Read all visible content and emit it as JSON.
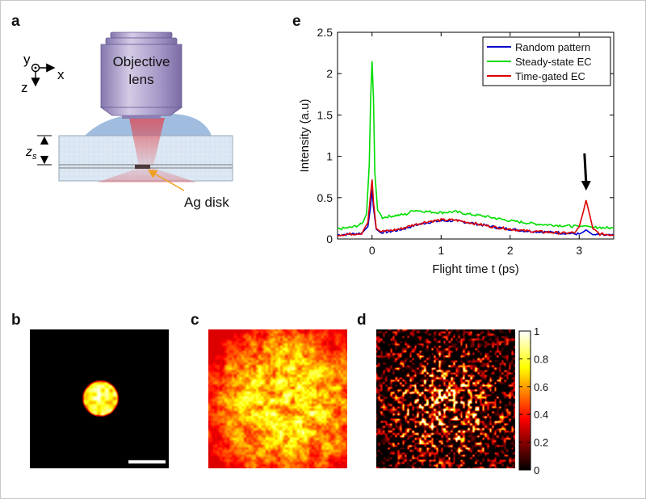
{
  "panels": {
    "a": "a",
    "b": "b",
    "c": "c",
    "d": "d",
    "e": "e"
  },
  "schematic": {
    "objective_line1": "Objective",
    "objective_line2": "lens",
    "axis_y": "y",
    "axis_x": "x",
    "axis_z": "z",
    "zs_main": "z",
    "zs_sub": "s",
    "disk_label": "Ag disk",
    "colors": {
      "objective_body": "#a79bc6",
      "immersion": "#8fb1d9",
      "slab": "#dce8f4",
      "beam": "#e0434b",
      "arrow": "#f0a020"
    }
  },
  "colorbar": {
    "ticks": [
      "1",
      "0.8",
      "0.6",
      "0.4",
      "0.2",
      "0"
    ],
    "colormap": "hot"
  },
  "chart_data": {
    "type": "line",
    "xlabel": "Flight time t (ps)",
    "ylabel": "Intensity (a.u)",
    "xlim": [
      -0.5,
      3.5
    ],
    "ylim": [
      0,
      2.5
    ],
    "xticks": [
      0,
      1,
      2,
      3
    ],
    "xtick_labels": [
      "0",
      "1",
      "2",
      "3"
    ],
    "yticks": [
      0,
      0.5,
      1,
      1.5,
      2,
      2.5
    ],
    "ytick_labels": [
      "0",
      "0.5",
      "1",
      "1.5",
      "2",
      "2.5"
    ],
    "grid": false,
    "legend_position": "top-right",
    "annotation": "downward arrow above peak at t = 3.1 ps",
    "series": [
      {
        "name": "Random pattern",
        "color": "#0000cc",
        "x": [
          -0.5,
          -0.3,
          -0.15,
          -0.06,
          -0.02,
          0.0,
          0.02,
          0.06,
          0.12,
          0.25,
          0.4,
          0.6,
          0.8,
          1.0,
          1.2,
          1.4,
          1.6,
          1.8,
          2.0,
          2.2,
          2.4,
          2.6,
          2.8,
          3.0,
          3.05,
          3.1,
          3.15,
          3.2,
          3.3,
          3.5
        ],
        "y": [
          0.05,
          0.06,
          0.07,
          0.15,
          0.4,
          0.6,
          0.38,
          0.12,
          0.08,
          0.09,
          0.11,
          0.16,
          0.2,
          0.22,
          0.22,
          0.2,
          0.17,
          0.14,
          0.12,
          0.1,
          0.09,
          0.08,
          0.07,
          0.06,
          0.08,
          0.11,
          0.08,
          0.05,
          0.05,
          0.04
        ]
      },
      {
        "name": "Steady-state EC",
        "color": "#00dd00",
        "x": [
          -0.5,
          -0.3,
          -0.15,
          -0.08,
          -0.04,
          -0.02,
          0.0,
          0.02,
          0.04,
          0.08,
          0.15,
          0.3,
          0.5,
          0.6,
          0.8,
          1.0,
          1.2,
          1.4,
          1.6,
          1.8,
          2.0,
          2.2,
          2.4,
          2.6,
          2.8,
          3.0,
          3.1,
          3.2,
          3.3,
          3.5
        ],
        "y": [
          0.12,
          0.14,
          0.18,
          0.3,
          0.9,
          1.7,
          2.15,
          1.7,
          0.8,
          0.35,
          0.26,
          0.28,
          0.3,
          0.35,
          0.33,
          0.32,
          0.33,
          0.3,
          0.28,
          0.25,
          0.22,
          0.2,
          0.18,
          0.17,
          0.16,
          0.15,
          0.16,
          0.14,
          0.14,
          0.13
        ]
      },
      {
        "name": "Time-gated EC",
        "color": "#dd0000",
        "x": [
          -0.5,
          -0.3,
          -0.15,
          -0.06,
          -0.02,
          0.0,
          0.02,
          0.06,
          0.12,
          0.25,
          0.4,
          0.6,
          0.8,
          1.0,
          1.2,
          1.4,
          1.6,
          1.8,
          2.0,
          2.2,
          2.4,
          2.6,
          2.8,
          2.95,
          3.0,
          3.05,
          3.1,
          3.15,
          3.2,
          3.3,
          3.5
        ],
        "y": [
          0.05,
          0.06,
          0.07,
          0.2,
          0.55,
          0.72,
          0.45,
          0.13,
          0.09,
          0.1,
          0.12,
          0.17,
          0.21,
          0.23,
          0.23,
          0.2,
          0.17,
          0.14,
          0.12,
          0.1,
          0.09,
          0.08,
          0.07,
          0.08,
          0.15,
          0.3,
          0.47,
          0.3,
          0.12,
          0.06,
          0.05
        ]
      }
    ]
  }
}
